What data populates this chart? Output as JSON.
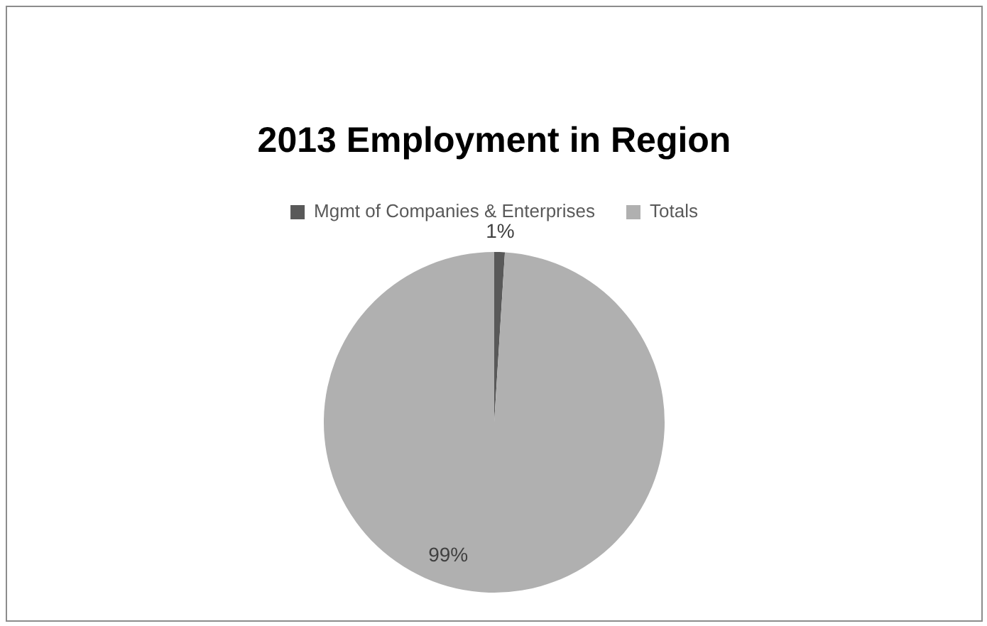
{
  "chart_data": {
    "type": "pie",
    "title": "2013 Employment in Region",
    "categories": [
      "Mgmt of Companies & Enterprises",
      "Totals"
    ],
    "values": [
      1,
      99
    ],
    "colors": [
      "#595959",
      "#b0b0b0"
    ],
    "value_labels": [
      "1%",
      "99%"
    ],
    "legend": "top"
  }
}
